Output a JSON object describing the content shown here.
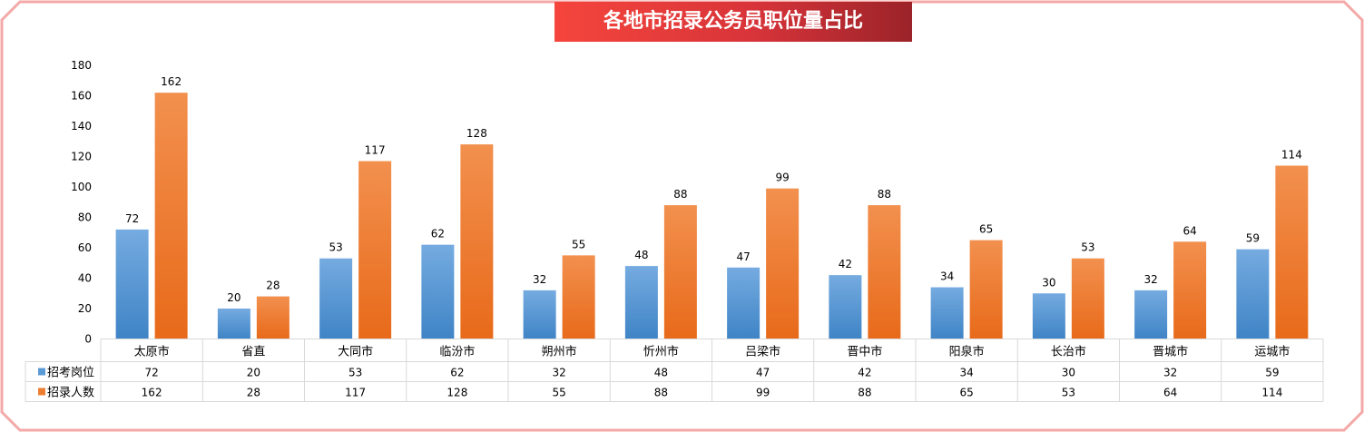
{
  "chart_data": {
    "type": "bar",
    "title": "各地市招录公务员职位量占比",
    "categories": [
      "太原市",
      "省直",
      "大同市",
      "临汾市",
      "朔州市",
      "忻州市",
      "吕梁市",
      "晋中市",
      "阳泉市",
      "长治市",
      "晋城市",
      "运城市"
    ],
    "series": [
      {
        "name": "招考岗位",
        "values": [
          72,
          20,
          53,
          62,
          32,
          48,
          47,
          42,
          34,
          30,
          32,
          59
        ],
        "color": "#5b9bd5"
      },
      {
        "name": "招录人数",
        "values": [
          162,
          28,
          117,
          128,
          55,
          88,
          99,
          88,
          65,
          53,
          64,
          114
        ],
        "color": "#ed7d31"
      }
    ],
    "ylim": [
      0,
      180
    ],
    "yticks": [
      0,
      20,
      40,
      60,
      80,
      100,
      120,
      140,
      160,
      180
    ],
    "grid": false,
    "legend": "data-table",
    "data_table": true
  }
}
